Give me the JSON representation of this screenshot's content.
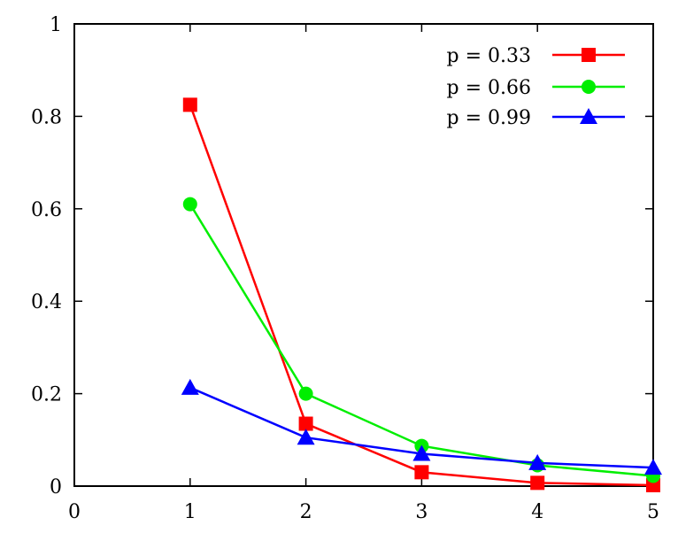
{
  "chart_data": {
    "type": "line",
    "title": "",
    "xlabel": "",
    "ylabel": "",
    "xlim": [
      0,
      5
    ],
    "ylim": [
      0,
      1
    ],
    "x_ticks": [
      0,
      1,
      2,
      3,
      4,
      5
    ],
    "y_ticks": [
      0,
      0.2,
      0.4,
      0.6,
      0.8,
      1
    ],
    "x_tick_labels": [
      "0",
      "1",
      "2",
      "3",
      "4",
      "5"
    ],
    "y_tick_labels": [
      "0",
      "0.2",
      "0.4",
      "0.6",
      "0.8",
      "1"
    ],
    "grid": false,
    "legend_position": "top-right",
    "x": [
      1,
      2,
      3,
      4,
      5
    ],
    "series": [
      {
        "name": "p = 0.33",
        "color": "#ff0000",
        "marker": "square",
        "values": [
          0.825,
          0.135,
          0.03,
          0.007,
          0.002
        ]
      },
      {
        "name": "p = 0.66",
        "color": "#00ee00",
        "marker": "circle",
        "values": [
          0.61,
          0.2,
          0.087,
          0.045,
          0.022
        ]
      },
      {
        "name": "p = 0.99",
        "color": "#0000ff",
        "marker": "triangle",
        "values": [
          0.213,
          0.105,
          0.07,
          0.05,
          0.04
        ]
      }
    ]
  }
}
